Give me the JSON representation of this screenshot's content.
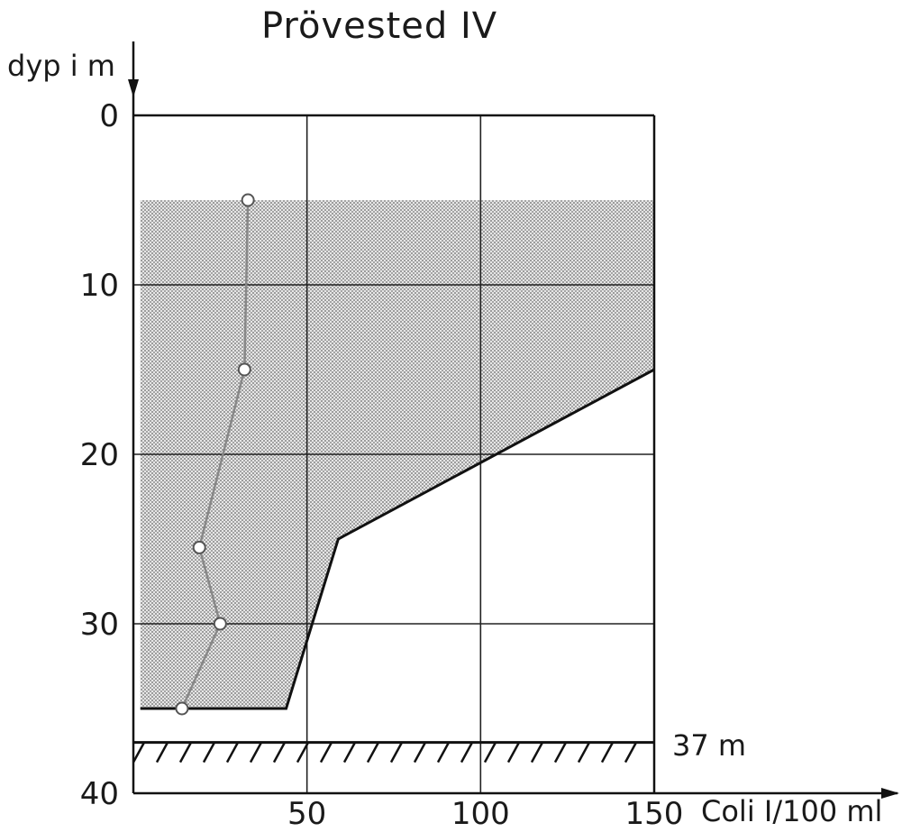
{
  "chart_data": {
    "type": "line",
    "title": "Prövested IV",
    "ylabel": "dyp i m",
    "xlabel": "Coli I/100 ml",
    "xlim": [
      0,
      150
    ],
    "ylim": [
      0,
      40
    ],
    "y_inverted": true,
    "grid": true,
    "x_ticks": [
      50,
      100,
      150
    ],
    "y_ticks": [
      0,
      10,
      20,
      30,
      40
    ],
    "series": [
      {
        "name": "",
        "style": "line-with-open-circles",
        "x": [
          33,
          32,
          19,
          25,
          14
        ],
        "y": [
          5,
          15,
          25.5,
          30,
          35
        ]
      }
    ],
    "shaded_region": {
      "style": "dotted",
      "boundary": [
        [
          2,
          5
        ],
        [
          150,
          5
        ],
        [
          150,
          15
        ],
        [
          59,
          25
        ],
        [
          44,
          35
        ],
        [
          2,
          35
        ]
      ]
    },
    "bottom": {
      "depth": 37,
      "label": "37 m",
      "style": "hatched"
    }
  }
}
